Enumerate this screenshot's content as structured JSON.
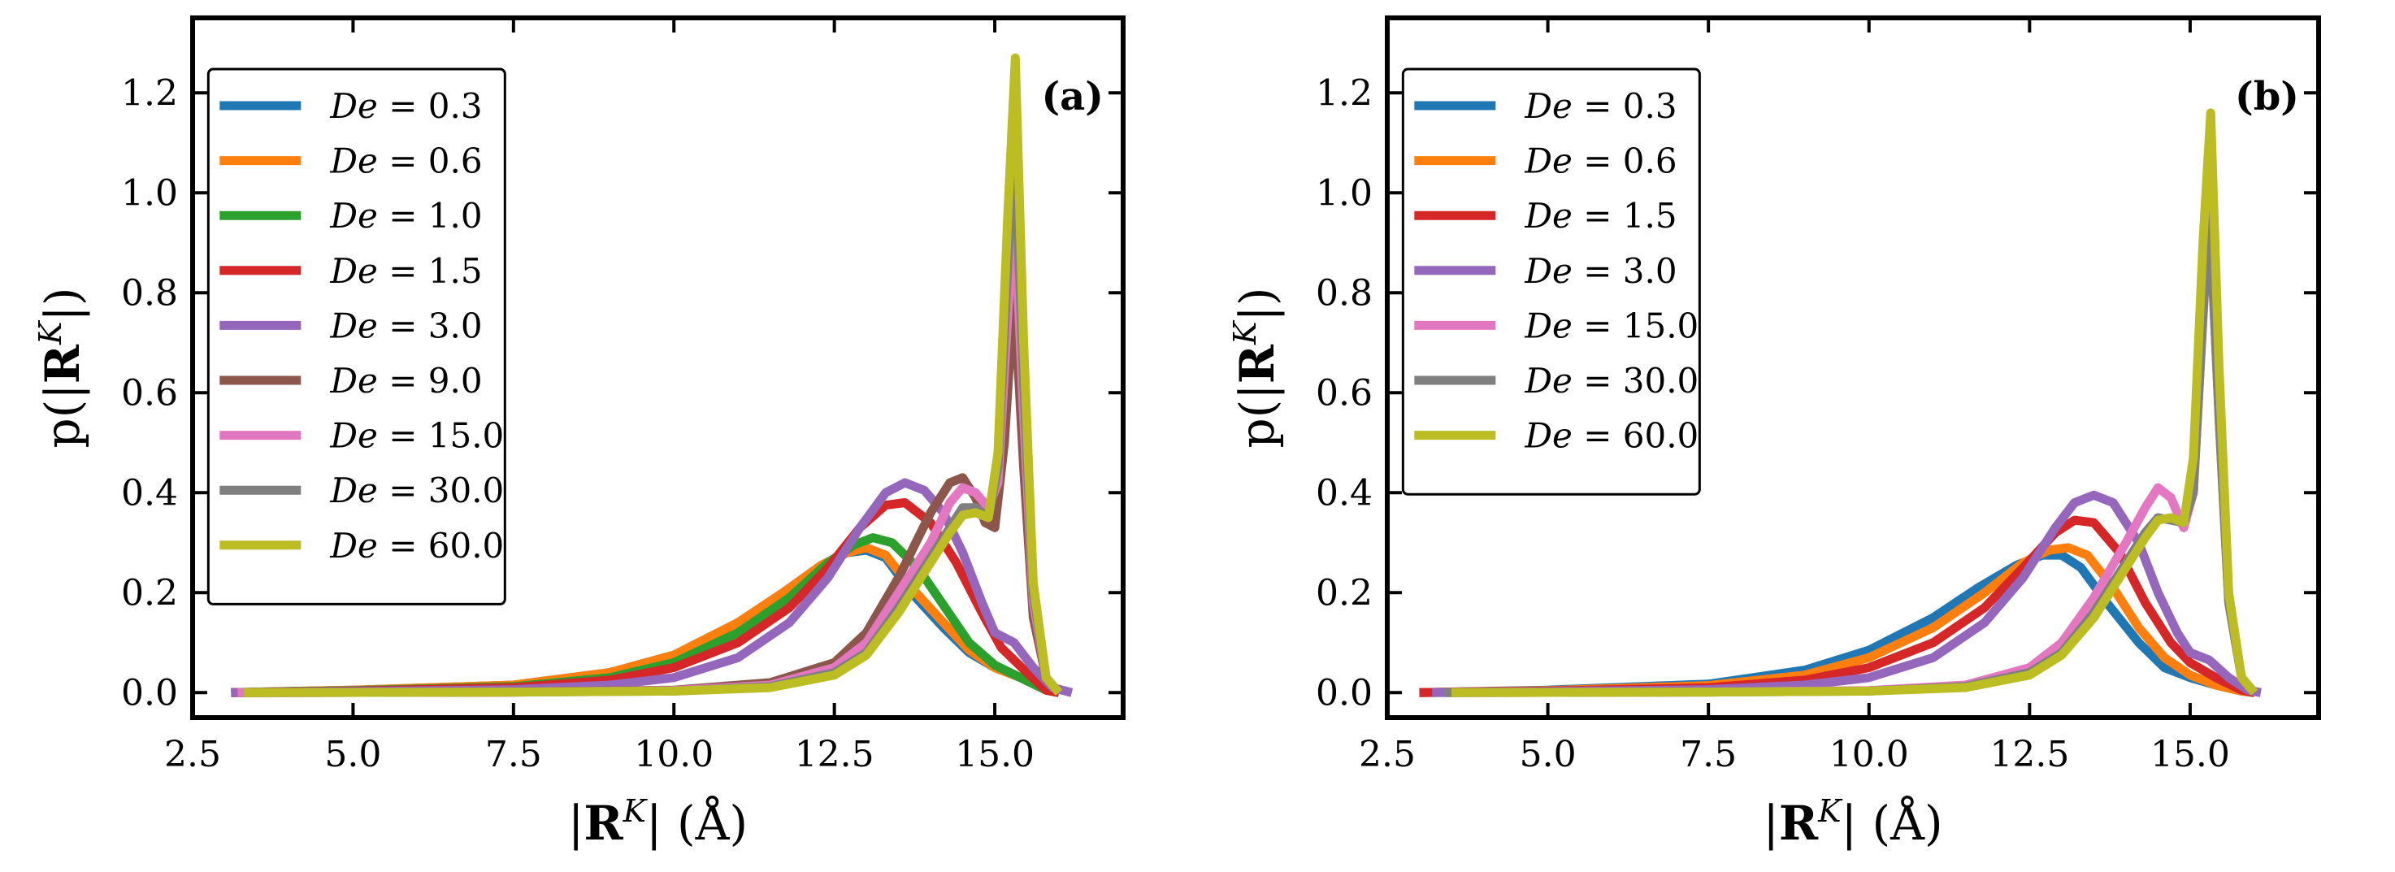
{
  "figure": {
    "xlabel": "|R^K| (Å)",
    "ylabel": "p(|R^K|)"
  },
  "chart_data": [
    {
      "type": "line",
      "panel_label": "(a)",
      "xlabel": "|R^K| (Å)",
      "ylabel": "p(|R^K|)",
      "xlim": [
        2.5,
        17.0
      ],
      "ylim": [
        -0.05,
        1.35
      ],
      "xticks": [
        2.5,
        5.0,
        7.5,
        10.0,
        12.5,
        15.0
      ],
      "xtick_labels": [
        "2.5",
        "5.0",
        "7.5",
        "10.0",
        "12.5",
        "15.0"
      ],
      "yticks": [
        0.0,
        0.2,
        0.4,
        0.6,
        0.8,
        1.0,
        1.2
      ],
      "ytick_labels": [
        "0.0",
        "0.2",
        "0.4",
        "0.6",
        "0.8",
        "1.0",
        "1.2"
      ],
      "legend_position": "upper-left",
      "series": [
        {
          "name": "De = 0.3",
          "label_var": "De",
          "label_val": "0.3",
          "color": "#1f77b4",
          "x": [
            3.1,
            5,
            7.5,
            9,
            10,
            11,
            11.7,
            12.3,
            12.7,
            13.0,
            13.3,
            13.7,
            14.2,
            14.6,
            15.0,
            15.4,
            15.8,
            16.0
          ],
          "y": [
            0,
            0.005,
            0.015,
            0.04,
            0.075,
            0.14,
            0.2,
            0.255,
            0.28,
            0.285,
            0.27,
            0.2,
            0.13,
            0.08,
            0.05,
            0.03,
            0.005,
            0
          ]
        },
        {
          "name": "De = 0.6",
          "label_var": "De",
          "label_val": "0.6",
          "color": "#ff7f0e",
          "x": [
            3.1,
            5,
            7.5,
            9,
            10,
            11,
            11.7,
            12.3,
            12.7,
            13.0,
            13.3,
            13.7,
            14.2,
            14.6,
            15.0,
            15.4,
            15.8,
            16.0
          ],
          "y": [
            0,
            0.005,
            0.015,
            0.04,
            0.075,
            0.14,
            0.2,
            0.255,
            0.28,
            0.29,
            0.275,
            0.21,
            0.14,
            0.085,
            0.05,
            0.03,
            0.005,
            0
          ]
        },
        {
          "name": "De = 1.0",
          "label_var": "De",
          "label_val": "1.0",
          "color": "#2ca02c",
          "x": [
            3.1,
            5,
            7.5,
            9,
            10,
            11,
            11.8,
            12.4,
            12.8,
            13.1,
            13.4,
            13.8,
            14.2,
            14.6,
            15.0,
            15.4,
            15.8,
            16.0
          ],
          "y": [
            0,
            0.004,
            0.012,
            0.03,
            0.06,
            0.12,
            0.19,
            0.26,
            0.295,
            0.31,
            0.3,
            0.25,
            0.175,
            0.1,
            0.055,
            0.03,
            0.005,
            0
          ]
        },
        {
          "name": "De = 1.5",
          "label_var": "De",
          "label_val": "1.5",
          "color": "#d62728",
          "x": [
            3.1,
            5,
            7.5,
            9,
            10,
            11,
            11.8,
            12.4,
            12.9,
            13.3,
            13.6,
            14.0,
            14.4,
            14.8,
            15.1,
            15.5,
            15.8,
            16.0
          ],
          "y": [
            0,
            0.003,
            0.01,
            0.025,
            0.05,
            0.1,
            0.17,
            0.25,
            0.33,
            0.375,
            0.38,
            0.34,
            0.26,
            0.16,
            0.09,
            0.04,
            0.005,
            0
          ]
        },
        {
          "name": "De = 3.0",
          "label_var": "De",
          "label_val": "3.0",
          "color": "#9467bd",
          "x": [
            3.1,
            5,
            7.5,
            9,
            10,
            11,
            11.8,
            12.4,
            12.9,
            13.3,
            13.6,
            13.9,
            14.2,
            14.5,
            14.8,
            15.0,
            15.3,
            15.6,
            15.9,
            16.2
          ],
          "y": [
            0,
            0.002,
            0.006,
            0.015,
            0.03,
            0.07,
            0.14,
            0.23,
            0.33,
            0.4,
            0.42,
            0.405,
            0.36,
            0.28,
            0.18,
            0.12,
            0.1,
            0.05,
            0.01,
            0
          ]
        },
        {
          "name": "De = 9.0",
          "label_var": "De",
          "label_val": "9.0",
          "color": "#8c564b",
          "x": [
            3.2,
            7.5,
            10,
            11.5,
            12.5,
            13,
            13.5,
            14.0,
            14.3,
            14.5,
            14.7,
            14.85,
            15.0,
            15.15,
            15.3,
            15.45,
            15.6,
            15.8,
            16.0
          ],
          "y": [
            0,
            0.001,
            0.005,
            0.02,
            0.06,
            0.12,
            0.23,
            0.36,
            0.42,
            0.43,
            0.39,
            0.34,
            0.33,
            0.5,
            0.8,
            0.45,
            0.15,
            0.03,
            0
          ]
        },
        {
          "name": "De = 15.0",
          "label_var": "De",
          "label_val": "15.0",
          "color": "#e377c2",
          "x": [
            3.2,
            7.5,
            10,
            11.5,
            12.5,
            13,
            13.5,
            14.0,
            14.3,
            14.5,
            14.7,
            14.9,
            15.05,
            15.2,
            15.3,
            15.45,
            15.6,
            15.8,
            16.0
          ],
          "y": [
            0,
            0.001,
            0.004,
            0.015,
            0.05,
            0.1,
            0.2,
            0.3,
            0.38,
            0.41,
            0.4,
            0.37,
            0.42,
            0.75,
            0.97,
            0.55,
            0.18,
            0.03,
            0
          ]
        },
        {
          "name": "De = 30.0",
          "label_var": "De",
          "label_val": "30.0",
          "color": "#7f7f7f",
          "x": [
            3.3,
            7.5,
            10,
            11.5,
            12.5,
            13,
            13.5,
            14.0,
            14.3,
            14.5,
            14.7,
            14.9,
            15.05,
            15.2,
            15.3,
            15.45,
            15.6,
            15.8,
            16.0
          ],
          "y": [
            0,
            0.001,
            0.003,
            0.012,
            0.04,
            0.08,
            0.17,
            0.27,
            0.33,
            0.37,
            0.37,
            0.35,
            0.45,
            0.85,
            1.12,
            0.62,
            0.2,
            0.03,
            0
          ]
        },
        {
          "name": "De = 60.0",
          "label_var": "De",
          "label_val": "60.0",
          "color": "#bcbd22",
          "x": [
            3.3,
            7.5,
            10,
            11.5,
            12.5,
            13,
            13.5,
            14.0,
            14.3,
            14.5,
            14.7,
            14.9,
            15.05,
            15.2,
            15.32,
            15.45,
            15.6,
            15.8,
            16.0
          ],
          "y": [
            0,
            0.001,
            0.003,
            0.01,
            0.035,
            0.075,
            0.16,
            0.26,
            0.32,
            0.355,
            0.36,
            0.35,
            0.48,
            0.95,
            1.27,
            0.7,
            0.22,
            0.03,
            0
          ]
        }
      ]
    },
    {
      "type": "line",
      "panel_label": "(b)",
      "xlabel": "|R^K| (Å)",
      "ylabel": "p(|R^K|)",
      "xlim": [
        2.5,
        17.0
      ],
      "ylim": [
        -0.05,
        1.35
      ],
      "xticks": [
        2.5,
        5.0,
        7.5,
        10.0,
        12.5,
        15.0
      ],
      "xtick_labels": [
        "2.5",
        "5.0",
        "7.5",
        "10.0",
        "12.5",
        "15.0"
      ],
      "yticks": [
        0.0,
        0.2,
        0.4,
        0.6,
        0.8,
        1.0,
        1.2
      ],
      "ytick_labels": [
        "0.0",
        "0.2",
        "0.4",
        "0.6",
        "0.8",
        "1.0",
        "1.2"
      ],
      "legend_position": "upper-left",
      "series": [
        {
          "name": "De = 0.3",
          "label_var": "De",
          "label_val": "0.3",
          "color": "#1f77b4",
          "x": [
            3.0,
            5,
            7.5,
            9,
            10,
            11,
            11.7,
            12.3,
            12.7,
            13.0,
            13.3,
            13.7,
            14.2,
            14.6,
            15.0,
            15.4,
            15.8,
            16.0
          ],
          "y": [
            0,
            0.005,
            0.017,
            0.045,
            0.085,
            0.15,
            0.21,
            0.255,
            0.275,
            0.275,
            0.25,
            0.18,
            0.1,
            0.05,
            0.03,
            0.015,
            0.003,
            0
          ]
        },
        {
          "name": "De = 0.6",
          "label_var": "De",
          "label_val": "0.6",
          "color": "#ff7f0e",
          "x": [
            3.0,
            5,
            7.5,
            9,
            10,
            11,
            11.8,
            12.4,
            12.8,
            13.1,
            13.4,
            13.8,
            14.2,
            14.6,
            15.0,
            15.4,
            15.8,
            16.0
          ],
          "y": [
            0,
            0.004,
            0.014,
            0.035,
            0.07,
            0.13,
            0.2,
            0.26,
            0.285,
            0.29,
            0.275,
            0.21,
            0.13,
            0.07,
            0.035,
            0.015,
            0.003,
            0
          ]
        },
        {
          "name": "De = 1.5",
          "label_var": "De",
          "label_val": "1.5",
          "color": "#d62728",
          "x": [
            3.0,
            5,
            7.5,
            9,
            10,
            11,
            11.8,
            12.4,
            12.9,
            13.2,
            13.5,
            13.9,
            14.3,
            14.7,
            15.0,
            15.4,
            15.8,
            16.0
          ],
          "y": [
            0,
            0.003,
            0.01,
            0.025,
            0.05,
            0.1,
            0.17,
            0.25,
            0.32,
            0.345,
            0.34,
            0.28,
            0.18,
            0.1,
            0.06,
            0.03,
            0.005,
            0
          ]
        },
        {
          "name": "De = 3.0",
          "label_var": "De",
          "label_val": "3.0",
          "color": "#9467bd",
          "x": [
            3.2,
            5,
            7.5,
            9,
            10,
            11,
            11.8,
            12.4,
            12.9,
            13.2,
            13.5,
            13.8,
            14.2,
            14.5,
            14.8,
            15.0,
            15.3,
            15.6,
            15.9,
            16.1
          ],
          "y": [
            0,
            0.002,
            0.006,
            0.015,
            0.03,
            0.07,
            0.14,
            0.23,
            0.33,
            0.38,
            0.395,
            0.38,
            0.3,
            0.2,
            0.12,
            0.08,
            0.065,
            0.03,
            0.005,
            0
          ]
        },
        {
          "name": "De = 15.0",
          "label_var": "De",
          "label_val": "15.0",
          "color": "#e377c2",
          "x": [
            3.4,
            7.5,
            10,
            11.5,
            12.5,
            13,
            13.5,
            14.0,
            14.3,
            14.5,
            14.7,
            14.9,
            15.05,
            15.2,
            15.3,
            15.45,
            15.6,
            15.8,
            16.0
          ],
          "y": [
            0,
            0.001,
            0.004,
            0.015,
            0.05,
            0.1,
            0.19,
            0.3,
            0.37,
            0.41,
            0.39,
            0.33,
            0.4,
            0.75,
            0.97,
            0.55,
            0.18,
            0.03,
            0
          ]
        },
        {
          "name": "De = 30.0",
          "label_var": "De",
          "label_val": "30.0",
          "color": "#7f7f7f",
          "x": [
            3.4,
            7.5,
            10,
            11.5,
            12.5,
            13,
            13.5,
            14.0,
            14.3,
            14.5,
            14.7,
            14.9,
            15.05,
            15.2,
            15.3,
            15.45,
            15.6,
            15.8,
            16.0
          ],
          "y": [
            0,
            0.001,
            0.003,
            0.012,
            0.04,
            0.08,
            0.16,
            0.26,
            0.32,
            0.35,
            0.345,
            0.34,
            0.4,
            0.75,
            0.97,
            0.55,
            0.18,
            0.03,
            0
          ]
        },
        {
          "name": "De = 60.0",
          "label_var": "De",
          "label_val": "60.0",
          "color": "#bcbd22",
          "x": [
            3.5,
            7.5,
            10,
            11.5,
            12.5,
            13,
            13.5,
            14.0,
            14.3,
            14.5,
            14.7,
            14.9,
            15.05,
            15.2,
            15.32,
            15.45,
            15.6,
            15.8,
            16.0
          ],
          "y": [
            0,
            0.001,
            0.003,
            0.01,
            0.035,
            0.075,
            0.15,
            0.25,
            0.31,
            0.345,
            0.35,
            0.34,
            0.47,
            0.9,
            1.16,
            0.65,
            0.2,
            0.03,
            0
          ]
        }
      ]
    }
  ]
}
